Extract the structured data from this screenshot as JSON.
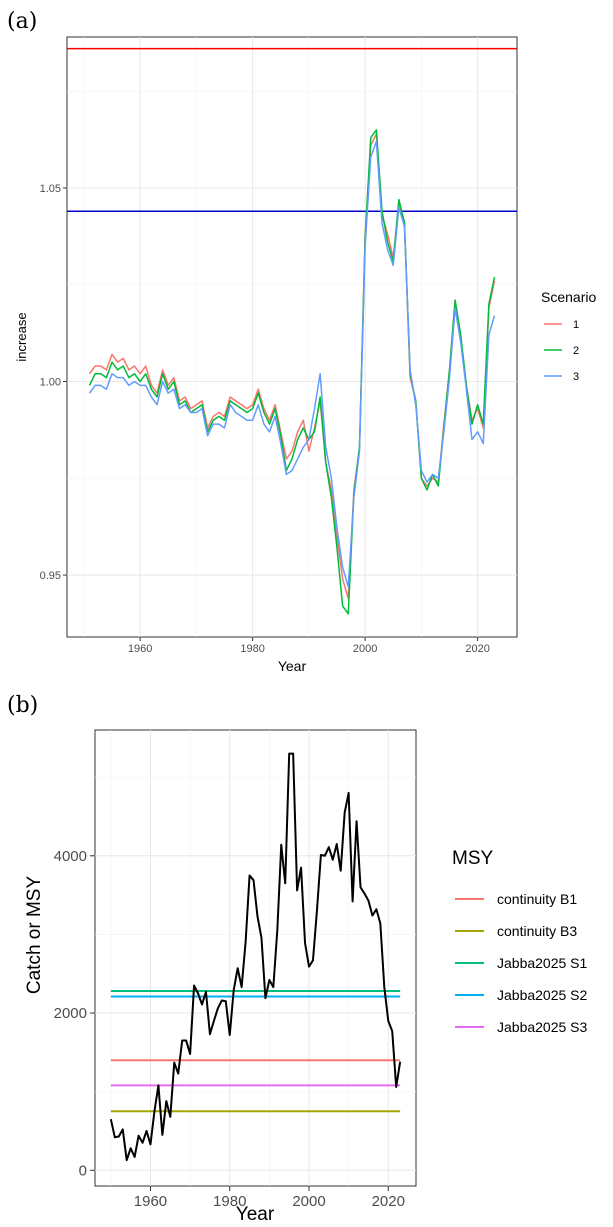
{
  "panel_a_label": "(a)",
  "panel_b_label": "(b)",
  "chart_data": [
    {
      "type": "line",
      "xlabel": "Year",
      "ylabel": "increase",
      "xlim": [
        1947,
        2027
      ],
      "ylim": [
        0.934,
        1.089
      ],
      "xticks": [
        1960,
        1980,
        2000,
        2020
      ],
      "yticks": [
        0.95,
        1.0,
        1.05
      ],
      "ytick_labels": [
        "0.95",
        "1.00",
        "1.05"
      ],
      "grid": true,
      "legend_title": "Scenario",
      "legend_position": "right",
      "x": [
        1951,
        1952,
        1953,
        1954,
        1955,
        1956,
        1957,
        1958,
        1959,
        1960,
        1961,
        1962,
        1963,
        1964,
        1965,
        1966,
        1967,
        1968,
        1969,
        1970,
        1971,
        1972,
        1973,
        1974,
        1975,
        1976,
        1977,
        1978,
        1979,
        1980,
        1981,
        1982,
        1983,
        1984,
        1985,
        1986,
        1987,
        1988,
        1989,
        1990,
        1991,
        1992,
        1993,
        1994,
        1995,
        1996,
        1997,
        1998,
        1999,
        2000,
        2001,
        2002,
        2003,
        2004,
        2005,
        2006,
        2007,
        2008,
        2009,
        2010,
        2011,
        2012,
        2013,
        2014,
        2015,
        2016,
        2017,
        2018,
        2019,
        2020,
        2021,
        2022,
        2023
      ],
      "series": [
        {
          "name": "1",
          "color": "#f8766d",
          "values": [
            1.002,
            1.004,
            1.004,
            1.003,
            1.007,
            1.005,
            1.006,
            1.003,
            1.004,
            1.002,
            1.004,
            0.999,
            0.997,
            1.003,
            0.999,
            1.001,
            0.995,
            0.996,
            0.993,
            0.994,
            0.995,
            0.988,
            0.991,
            0.992,
            0.991,
            0.996,
            0.995,
            0.994,
            0.993,
            0.994,
            0.998,
            0.993,
            0.99,
            0.994,
            0.987,
            0.98,
            0.982,
            0.987,
            0.99,
            0.982,
            0.988,
            0.995,
            0.979,
            0.972,
            0.96,
            0.949,
            0.944,
            0.972,
            0.983,
            1.038,
            1.061,
            1.064,
            1.043,
            1.038,
            1.032,
            1.046,
            1.04,
            1.001,
            0.995,
            0.975,
            0.973,
            0.975,
            0.974,
            0.989,
            1.003,
            1.021,
            1.011,
            0.999,
            0.99,
            0.993,
            0.988,
            1.019,
            1.026
          ]
        },
        {
          "name": "2",
          "color": "#00ba38",
          "values": [
            0.999,
            1.002,
            1.002,
            1.001,
            1.005,
            1.003,
            1.004,
            1.001,
            1.002,
            1.0,
            1.002,
            0.998,
            0.996,
            1.002,
            0.998,
            1.0,
            0.994,
            0.995,
            0.992,
            0.993,
            0.994,
            0.987,
            0.99,
            0.991,
            0.99,
            0.995,
            0.994,
            0.993,
            0.992,
            0.993,
            0.997,
            0.992,
            0.989,
            0.993,
            0.986,
            0.977,
            0.98,
            0.985,
            0.988,
            0.985,
            0.987,
            0.996,
            0.979,
            0.97,
            0.957,
            0.942,
            0.94,
            0.971,
            0.983,
            1.037,
            1.063,
            1.065,
            1.044,
            1.036,
            1.031,
            1.047,
            1.041,
            1.002,
            0.995,
            0.975,
            0.972,
            0.976,
            0.973,
            0.988,
            1.003,
            1.021,
            1.012,
            0.999,
            0.989,
            0.994,
            0.989,
            1.02,
            1.027
          ]
        },
        {
          "name": "3",
          "color": "#619cff",
          "values": [
            0.997,
            0.999,
            0.999,
            0.998,
            1.002,
            1.001,
            1.001,
            0.999,
            1.0,
            0.999,
            0.999,
            0.996,
            0.994,
            1.0,
            0.997,
            0.998,
            0.993,
            0.994,
            0.992,
            0.992,
            0.993,
            0.986,
            0.989,
            0.989,
            0.988,
            0.994,
            0.992,
            0.991,
            0.99,
            0.99,
            0.994,
            0.989,
            0.987,
            0.991,
            0.984,
            0.976,
            0.977,
            0.98,
            0.983,
            0.985,
            0.993,
            1.002,
            0.983,
            0.975,
            0.962,
            0.952,
            0.947,
            0.97,
            0.982,
            1.035,
            1.058,
            1.062,
            1.041,
            1.034,
            1.03,
            1.045,
            1.04,
            1.003,
            0.994,
            0.977,
            0.974,
            0.976,
            0.975,
            0.987,
            1.001,
            1.019,
            1.01,
            0.998,
            0.985,
            0.987,
            0.984,
            1.012,
            1.017
          ]
        }
      ],
      "reference_lines": [
        {
          "y": 1.086,
          "color": "#ff0000"
        },
        {
          "y": 1.044,
          "color": "#0000cd"
        }
      ]
    },
    {
      "type": "line",
      "xlabel": "Year",
      "ylabel": "Catch or MSY",
      "xlim": [
        1946,
        2027
      ],
      "ylim": [
        -200,
        5600
      ],
      "xticks": [
        1960,
        1980,
        2000,
        2020
      ],
      "yticks": [
        0,
        2000,
        4000
      ],
      "ytick_labels": [
        "0",
        "2000",
        "4000"
      ],
      "grid": true,
      "legend_title": "MSY",
      "legend_position": "right",
      "catch": {
        "color": "#000000",
        "x": [
          1950,
          1951,
          1952,
          1953,
          1954,
          1955,
          1956,
          1957,
          1958,
          1959,
          1960,
          1961,
          1962,
          1963,
          1964,
          1965,
          1966,
          1967,
          1968,
          1969,
          1970,
          1971,
          1972,
          1973,
          1974,
          1975,
          1976,
          1977,
          1978,
          1979,
          1980,
          1981,
          1982,
          1983,
          1984,
          1985,
          1986,
          1987,
          1988,
          1989,
          1990,
          1991,
          1992,
          1993,
          1994,
          1995,
          1996,
          1997,
          1998,
          1999,
          2000,
          2001,
          2002,
          2003,
          2004,
          2005,
          2006,
          2007,
          2008,
          2009,
          2010,
          2011,
          2012,
          2013,
          2014,
          2015,
          2016,
          2017,
          2018,
          2019,
          2020,
          2021,
          2022,
          2023
        ],
        "values": [
          650,
          420,
          430,
          520,
          130,
          280,
          170,
          440,
          350,
          500,
          330,
          750,
          1080,
          450,
          880,
          680,
          1370,
          1230,
          1650,
          1650,
          1480,
          2350,
          2250,
          2110,
          2270,
          1730,
          1900,
          2060,
          2160,
          2150,
          1720,
          2290,
          2570,
          2330,
          2900,
          3750,
          3690,
          3230,
          2960,
          2190,
          2420,
          2330,
          3050,
          4140,
          3650,
          5300,
          5300,
          3560,
          3850,
          2890,
          2590,
          2670,
          3300,
          4010,
          4000,
          4110,
          3950,
          4150,
          3810,
          4550,
          4800,
          3420,
          4440,
          3600,
          3520,
          3430,
          3240,
          3320,
          3140,
          2330,
          1900,
          1770,
          1060,
          1380
        ]
      },
      "msy_lines": [
        {
          "name": "continuity B1",
          "value": 1400,
          "color": "#f8766d"
        },
        {
          "name": "continuity B3",
          "value": 750,
          "color": "#a3a500"
        },
        {
          "name": "Jabba2025 S1",
          "value": 2280,
          "color": "#00bf7d"
        },
        {
          "name": "Jabba2025 S2",
          "value": 2210,
          "color": "#00b0f6"
        },
        {
          "name": "Jabba2025 S3",
          "value": 1080,
          "color": "#e76bf3"
        }
      ]
    }
  ]
}
